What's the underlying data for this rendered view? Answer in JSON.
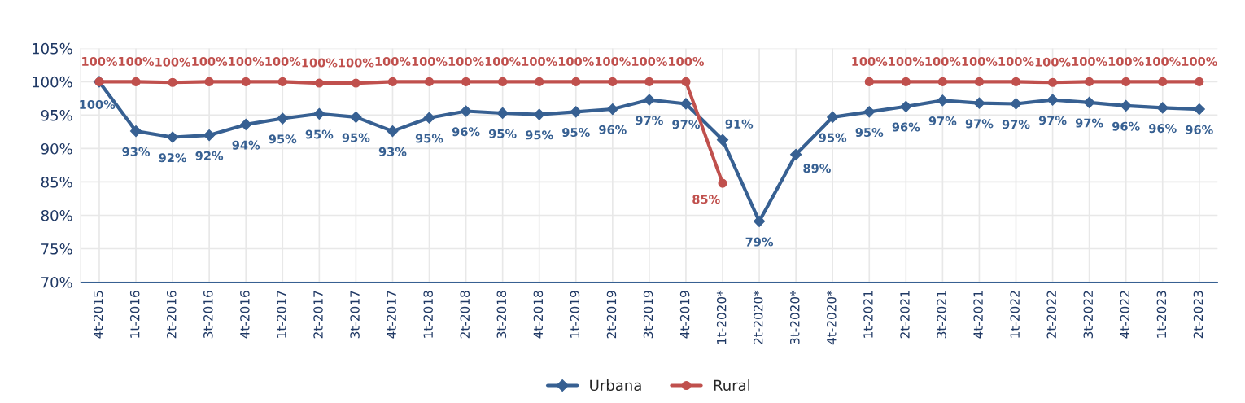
{
  "chart_data": {
    "type": "line",
    "categories": [
      "4t-2015",
      "1t-2016",
      "2t-2016",
      "3t-2016",
      "4t-2016",
      "1t-2017",
      "2t-2017",
      "3t-2017",
      "4t-2017",
      "1t-2018",
      "2t-2018",
      "3t-2018",
      "4t-2018",
      "1t-2019",
      "2t-2019",
      "3t-2019",
      "4t-2019",
      "1t-2020*",
      "2t-2020*",
      "3t-2020*",
      "4t-2020*",
      "1t-2021",
      "2t-2021",
      "3t-2021",
      "4t-2021",
      "1t-2022",
      "2t-2022",
      "3t-2022",
      "4t-2022",
      "1t-2023",
      "2t-2023"
    ],
    "series": [
      {
        "name": "Urbana",
        "color": "#376092",
        "marker": "diamond",
        "values": [
          100,
          92.6,
          91.7,
          92.0,
          93.6,
          94.5,
          95.2,
          94.7,
          92.6,
          94.6,
          95.6,
          95.3,
          95.1,
          95.5,
          95.9,
          97.3,
          96.7,
          91.3,
          79.1,
          89.1,
          94.7,
          95.5,
          96.3,
          97.2,
          96.8,
          96.7,
          97.3,
          96.9,
          96.4,
          96.1,
          95.9
        ],
        "value_labels": [
          "100%",
          "93%",
          "92%",
          "92%",
          "94%",
          "95%",
          "95%",
          "95%",
          "93%",
          "95%",
          "96%",
          "95%",
          "95%",
          "95%",
          "96%",
          "97%",
          "97%",
          "91%",
          "79%",
          "89%",
          "95%",
          "95%",
          "96%",
          "97%",
          "97%",
          "97%",
          "97%",
          "97%",
          "96%",
          "96%",
          "96%"
        ]
      },
      {
        "name": "Rural",
        "color": "#c0504d",
        "marker": "circle",
        "values": [
          100,
          100,
          99.9,
          100,
          100,
          100,
          99.8,
          99.8,
          100,
          100,
          100,
          100,
          100,
          100,
          100,
          100,
          100,
          84.8,
          null,
          null,
          null,
          100,
          100,
          100,
          100,
          100,
          99.9,
          100,
          100,
          100,
          100
        ],
        "value_labels": [
          "100%",
          "100%",
          "100%",
          "100%",
          "100%",
          "100%",
          "100%",
          "100%",
          "100%",
          "100%",
          "100%",
          "100%",
          "100%",
          "100%",
          "100%",
          "100%",
          "100%",
          "85%",
          null,
          null,
          null,
          "100%",
          "100%",
          "100%",
          "100%",
          "100%",
          "100%",
          "100%",
          "100%",
          "100%",
          "100%"
        ]
      }
    ],
    "ylim": [
      70,
      105
    ],
    "yticks": [
      {
        "value": 70,
        "label": "70%"
      },
      {
        "value": 75,
        "label": "75%"
      },
      {
        "value": 80,
        "label": "80%"
      },
      {
        "value": 85,
        "label": "85%"
      },
      {
        "value": 90,
        "label": "90%"
      },
      {
        "value": 95,
        "label": "95%"
      },
      {
        "value": 100,
        "label": "100%"
      },
      {
        "value": 105,
        "label": "105%"
      }
    ],
    "grid": true,
    "legend": "bottom",
    "line_style": "solid"
  }
}
